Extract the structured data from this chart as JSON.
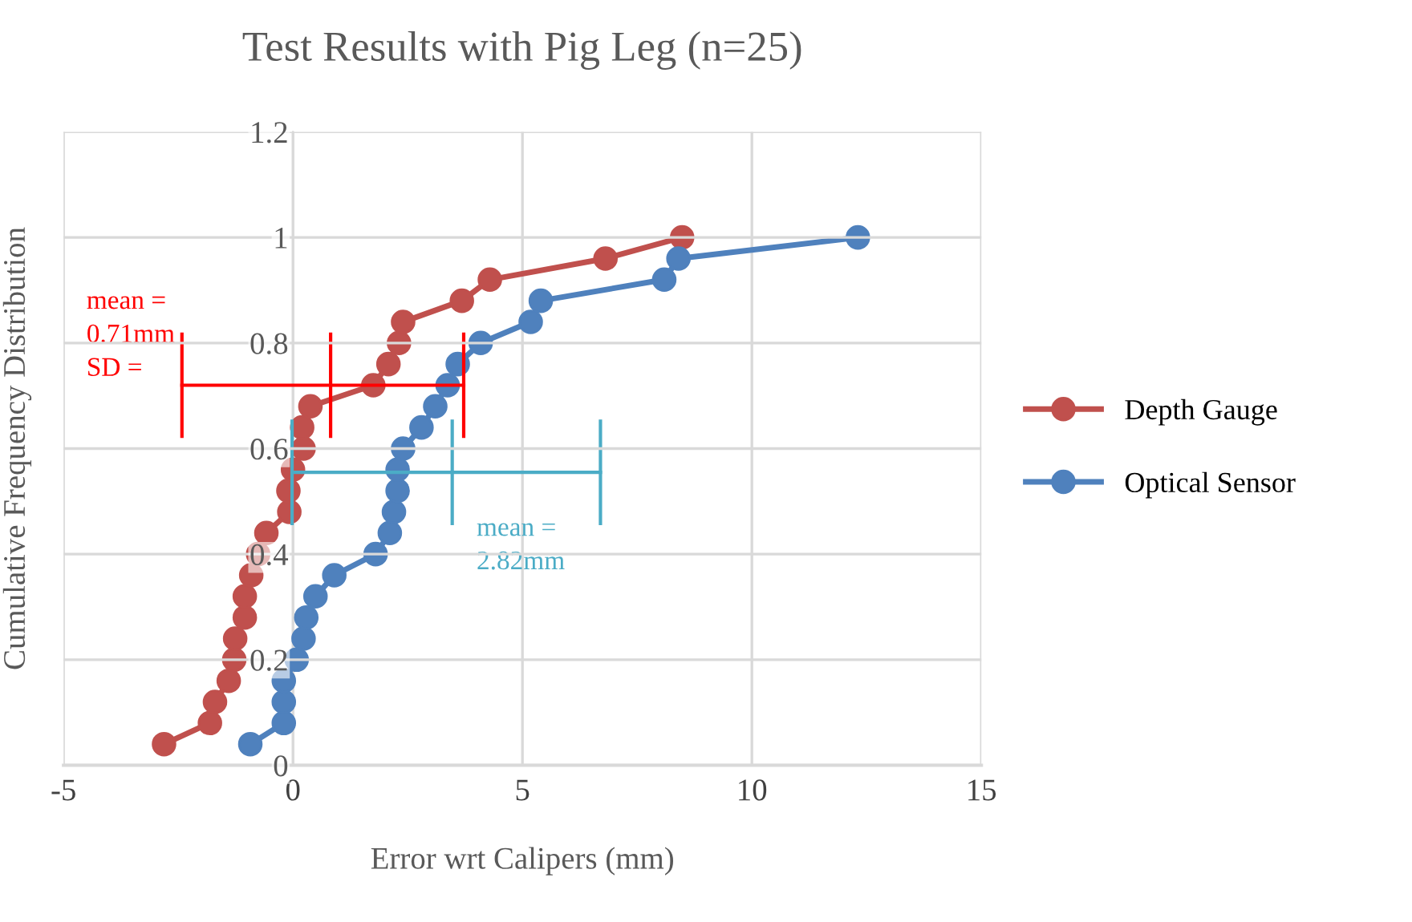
{
  "chart_data": {
    "type": "line",
    "title": "Test Results with Pig Leg (n=25)",
    "xlabel": "Error wrt Calipers (mm)",
    "ylabel": "Cumulative Frequency Distribution",
    "xlim": [
      -5,
      15
    ],
    "xticks": [
      -5,
      0,
      5,
      10,
      15
    ],
    "ylim": [
      0,
      1.2
    ],
    "yticks": [
      0,
      0.2,
      0.4,
      0.6,
      0.8,
      1,
      1.2
    ],
    "grid": true,
    "legend": "right",
    "marker": "circle",
    "line_style": "solid",
    "series": [
      {
        "name": "Depth Gauge",
        "color": "#c0504d",
        "x": [
          -2.81,
          -1.81,
          -1.7,
          -1.4,
          -1.28,
          -1.26,
          -1.05,
          -1.05,
          -0.91,
          -0.76,
          -0.58,
          -0.08,
          -0.1,
          0.0,
          0.23,
          0.2,
          0.38,
          1.75,
          2.08,
          2.31,
          2.4,
          3.68,
          4.29,
          6.81,
          8.48
        ],
        "values": [
          0.04,
          0.08,
          0.12,
          0.16,
          0.2,
          0.24,
          0.28,
          0.32,
          0.36,
          0.4,
          0.44,
          0.48,
          0.52,
          0.56,
          0.6,
          0.64,
          0.68,
          0.72,
          0.76,
          0.8,
          0.84,
          0.88,
          0.92,
          0.96,
          1
        ]
      },
      {
        "name": "Optical Sensor",
        "color": "#4f81bd",
        "x": [
          -0.93,
          -0.2,
          -0.2,
          -0.2,
          0.08,
          0.23,
          0.29,
          0.49,
          0.9,
          1.8,
          2.11,
          2.2,
          2.28,
          2.28,
          2.4,
          2.8,
          3.1,
          3.37,
          3.59,
          4.09,
          5.18,
          5.4,
          8.09,
          8.4,
          12.31
        ],
        "values": [
          0.04,
          0.08,
          0.12,
          0.16,
          0.2,
          0.24,
          0.28,
          0.32,
          0.36,
          0.4,
          0.44,
          0.48,
          0.52,
          0.56,
          0.6,
          0.64,
          0.68,
          0.72,
          0.76,
          0.8,
          0.84,
          0.88,
          0.92,
          0.96,
          1
        ]
      },
      {
        "type": "line",
        "marker": "none",
        "color": "#ff0000",
        "x": [
          -2.42,
          0.82,
          3.72
        ],
        "values": [
          0.72,
          0.72,
          0.72
        ],
        "errors": [
          0.1,
          0.1,
          0.1
        ]
      },
      {
        "type": "line",
        "marker": "none",
        "color": "#4bacc6",
        "x": [
          -0.02,
          3.47,
          6.7
        ],
        "values": [
          0.555,
          0.555,
          0.555
        ],
        "errors": [
          0.1,
          0.1,
          0.1
        ]
      }
    ],
    "annotations": [
      "mean =\n0.71mm\nSD =",
      "mean =\n2.82mm"
    ]
  }
}
